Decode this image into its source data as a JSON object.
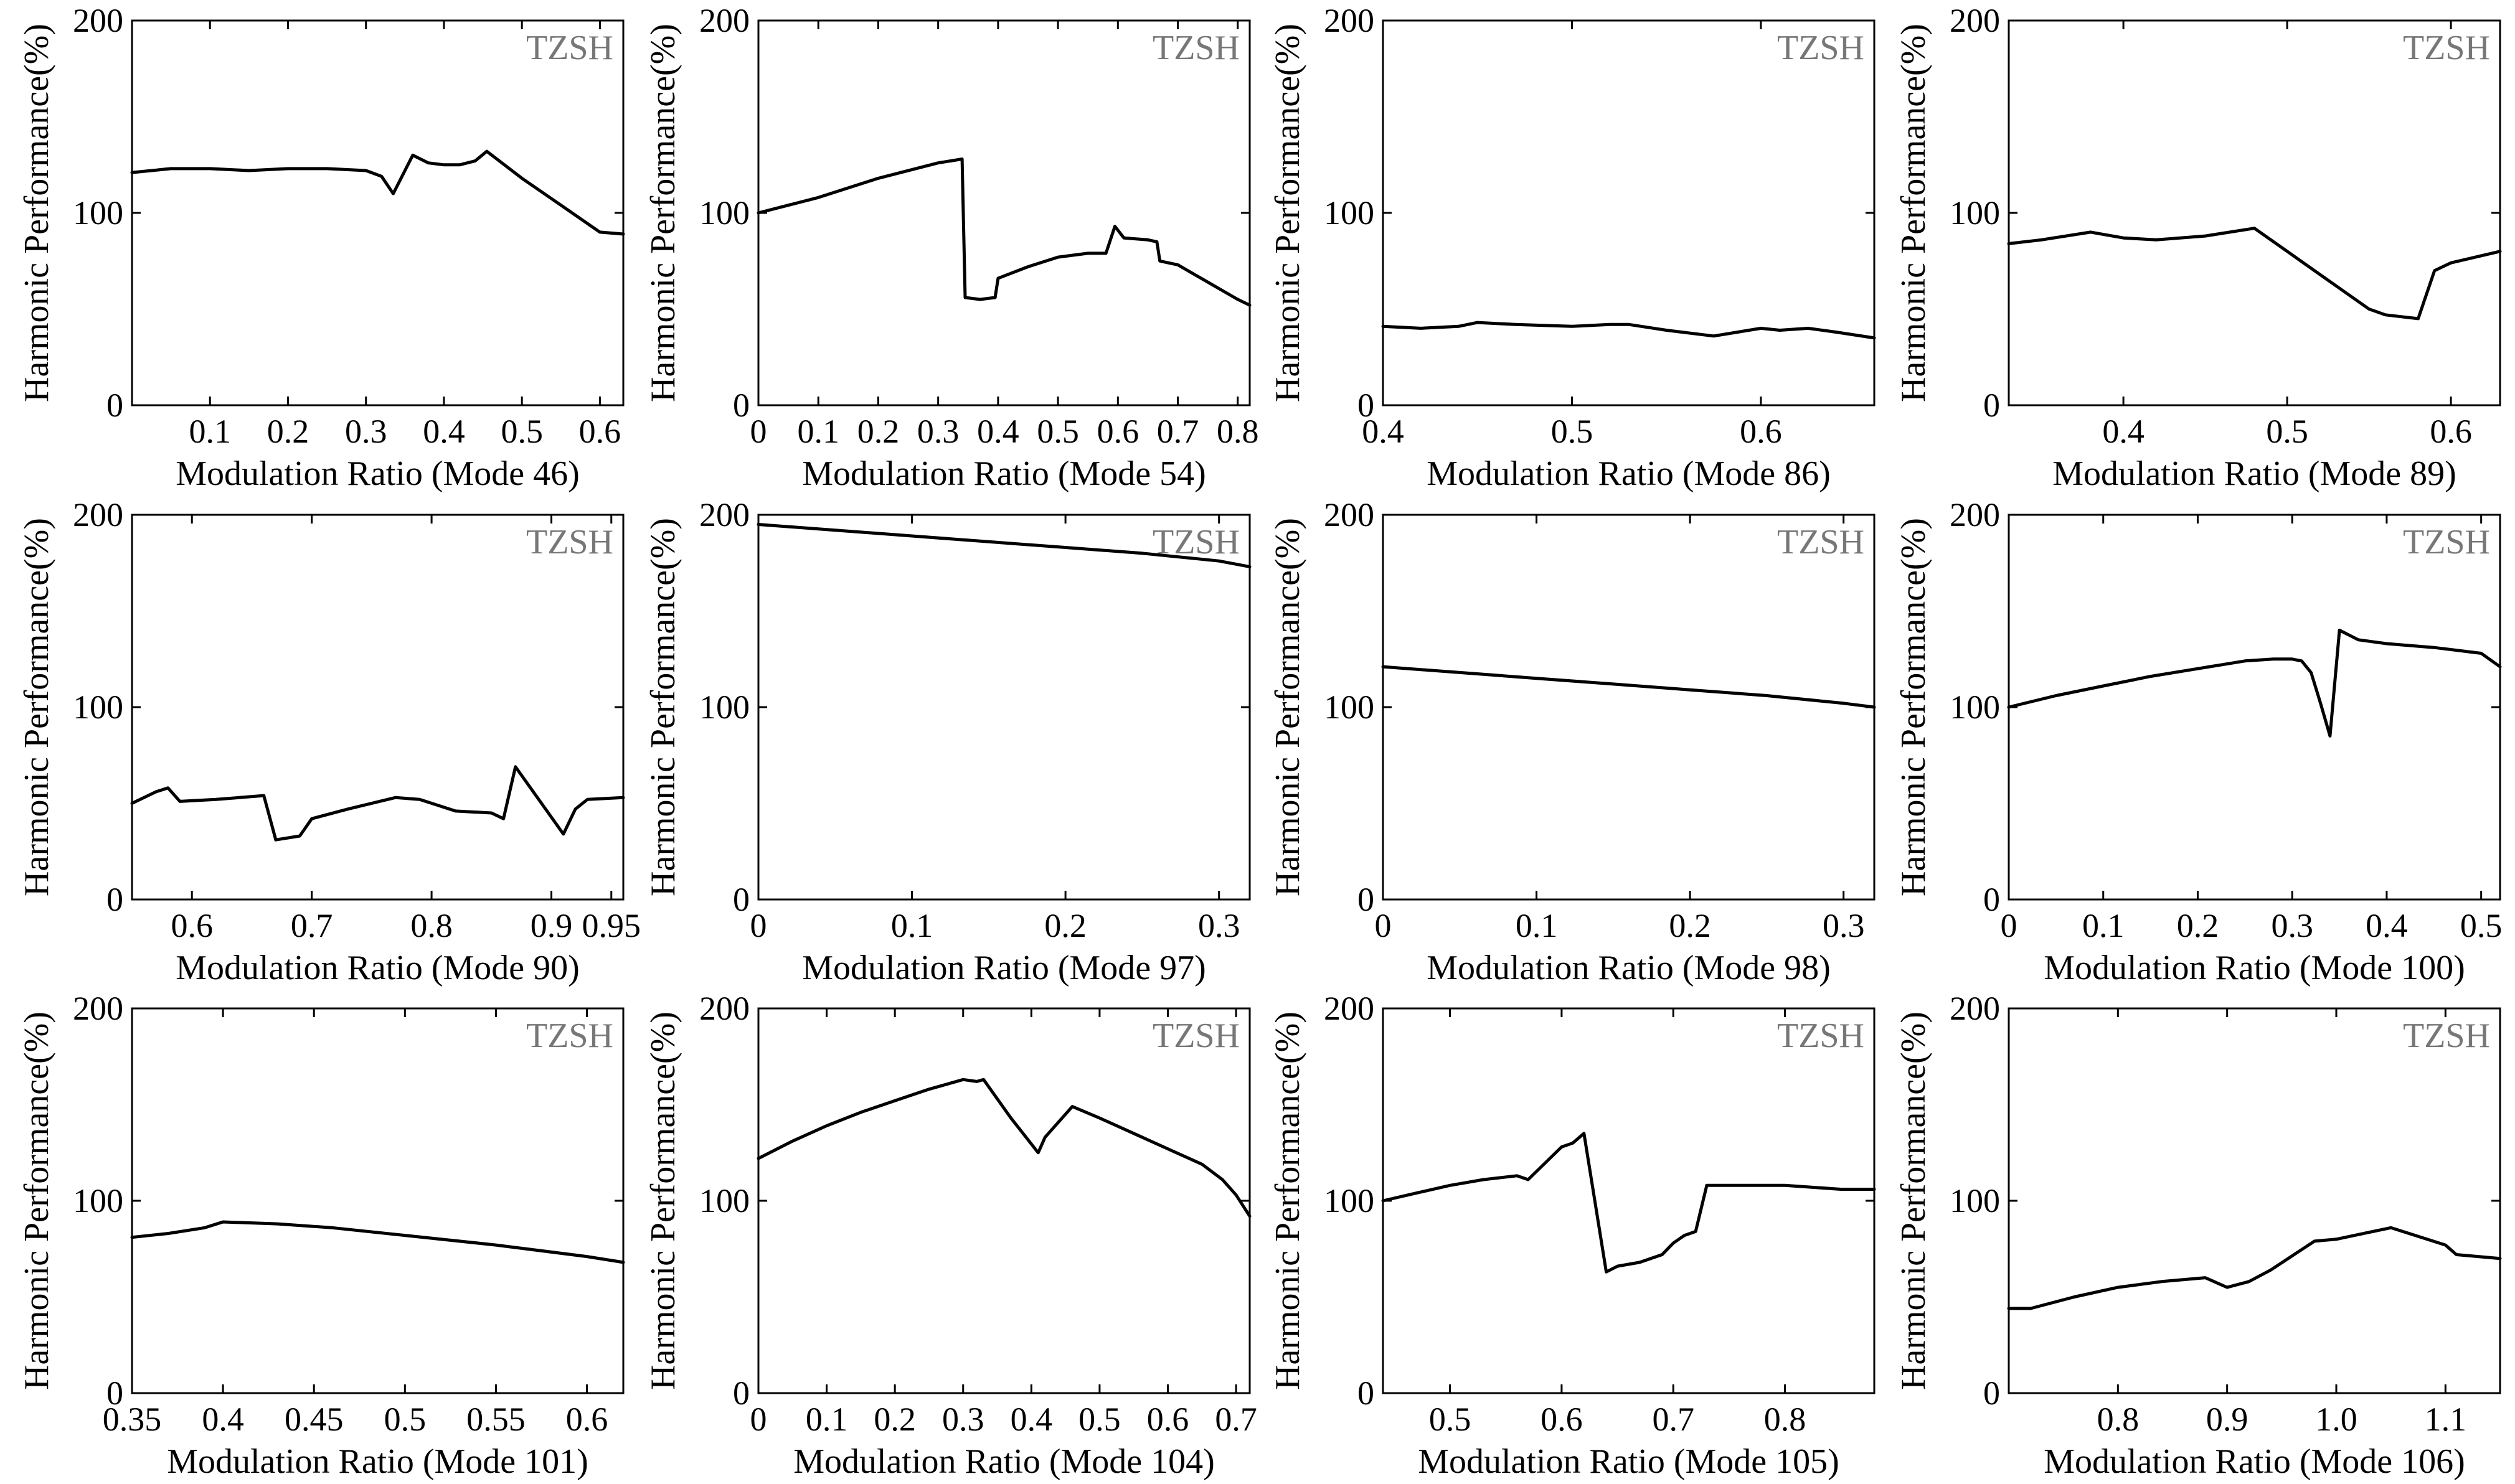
{
  "figure": {
    "ylabel": "Harmonic Performance(%)",
    "watermark": "TZSH",
    "line_color": "#000000",
    "watermark_color": "#777777"
  },
  "chart_data": [
    {
      "type": "line",
      "title": "",
      "xlabel": "Modulation Ratio (Mode 46)",
      "ylabel": "Harmonic Performance(%)",
      "watermark": "TZSH",
      "xlim": [
        0.0,
        0.63
      ],
      "ylim": [
        0,
        200
      ],
      "xticks": [
        0.1,
        0.2,
        0.3,
        0.4,
        0.5,
        0.6
      ],
      "xtick_labels": [
        "0.1",
        "0.2",
        "0.3",
        "0.4",
        "0.5",
        "0.6"
      ],
      "yticks": [
        0,
        100,
        200
      ],
      "ytick_labels": [
        "0",
        "100",
        "200"
      ],
      "x": [
        0.0,
        0.05,
        0.1,
        0.15,
        0.2,
        0.25,
        0.3,
        0.32,
        0.335,
        0.36,
        0.38,
        0.4,
        0.42,
        0.44,
        0.455,
        0.5,
        0.55,
        0.6,
        0.63
      ],
      "y": [
        121,
        123,
        123,
        122,
        123,
        123,
        122,
        119,
        110,
        130,
        126,
        125,
        125,
        127,
        132,
        118,
        104,
        90,
        89
      ]
    },
    {
      "type": "line",
      "title": "",
      "xlabel": "Modulation Ratio (Mode 54)",
      "ylabel": "Harmonic Performance(%)",
      "watermark": "TZSH",
      "xlim": [
        0.0,
        0.82
      ],
      "ylim": [
        0,
        200
      ],
      "xticks": [
        0,
        0.1,
        0.2,
        0.3,
        0.4,
        0.5,
        0.6,
        0.7,
        0.8
      ],
      "xtick_labels": [
        "0",
        "0.1",
        "0.2",
        "0.3",
        "0.4",
        "0.5",
        "0.6",
        "0.7",
        "0.8"
      ],
      "yticks": [
        0,
        100,
        200
      ],
      "ytick_labels": [
        "0",
        "100",
        "200"
      ],
      "x": [
        0.0,
        0.1,
        0.2,
        0.3,
        0.34,
        0.345,
        0.37,
        0.395,
        0.4,
        0.45,
        0.5,
        0.55,
        0.58,
        0.595,
        0.61,
        0.65,
        0.665,
        0.67,
        0.7,
        0.75,
        0.8,
        0.82
      ],
      "y": [
        100,
        108,
        118,
        126,
        128,
        56,
        55,
        56,
        66,
        72,
        77,
        79,
        79,
        93,
        87,
        86,
        85,
        75,
        73,
        64,
        55,
        52
      ]
    },
    {
      "type": "line",
      "title": "",
      "xlabel": "Modulation Ratio (Mode 86)",
      "ylabel": "Harmonic Performance(%)",
      "watermark": "TZSH",
      "xlim": [
        0.4,
        0.66
      ],
      "ylim": [
        0,
        200
      ],
      "xticks": [
        0.4,
        0.5,
        0.6
      ],
      "xtick_labels": [
        "0.4",
        "0.5",
        "0.6"
      ],
      "yticks": [
        0,
        100,
        200
      ],
      "ytick_labels": [
        "0",
        "100",
        "200"
      ],
      "x": [
        0.4,
        0.42,
        0.44,
        0.45,
        0.47,
        0.5,
        0.52,
        0.53,
        0.55,
        0.575,
        0.6,
        0.61,
        0.625,
        0.64,
        0.66
      ],
      "y": [
        41,
        40,
        41,
        43,
        42,
        41,
        42,
        42,
        39,
        36,
        40,
        39,
        40,
        38,
        35
      ]
    },
    {
      "type": "line",
      "title": "",
      "xlabel": "Modulation Ratio (Mode 89)",
      "ylabel": "Harmonic Performance(%)",
      "watermark": "TZSH",
      "xlim": [
        0.33,
        0.63
      ],
      "ylim": [
        0,
        200
      ],
      "xticks": [
        0.4,
        0.5,
        0.6
      ],
      "xtick_labels": [
        "0.4",
        "0.5",
        "0.6"
      ],
      "yticks": [
        0,
        100,
        200
      ],
      "ytick_labels": [
        "0",
        "100",
        "200"
      ],
      "x": [
        0.33,
        0.35,
        0.38,
        0.4,
        0.42,
        0.45,
        0.48,
        0.52,
        0.55,
        0.56,
        0.58,
        0.59,
        0.6,
        0.63
      ],
      "y": [
        84,
        86,
        90,
        87,
        86,
        88,
        92,
        68,
        50,
        47,
        45,
        70,
        74,
        80
      ]
    },
    {
      "type": "line",
      "title": "",
      "xlabel": "Modulation Ratio (Mode 90)",
      "ylabel": "Harmonic Performance(%)",
      "watermark": "TZSH",
      "xlim": [
        0.55,
        0.96
      ],
      "ylim": [
        0,
        200
      ],
      "xticks": [
        0.6,
        0.7,
        0.8,
        0.9,
        0.95
      ],
      "xtick_labels": [
        "0.6",
        "0.7",
        "0.8",
        "0.9",
        "0.95"
      ],
      "yticks": [
        0,
        100,
        200
      ],
      "ytick_labels": [
        "0",
        "100",
        "200"
      ],
      "x": [
        0.55,
        0.57,
        0.58,
        0.59,
        0.62,
        0.66,
        0.67,
        0.69,
        0.7,
        0.73,
        0.77,
        0.79,
        0.82,
        0.85,
        0.86,
        0.87,
        0.91,
        0.92,
        0.93,
        0.96
      ],
      "y": [
        50,
        56,
        58,
        51,
        52,
        54,
        31,
        33,
        42,
        47,
        53,
        52,
        46,
        45,
        42,
        69,
        34,
        47,
        52,
        53
      ]
    },
    {
      "type": "line",
      "title": "",
      "xlabel": "Modulation Ratio (Mode 97)",
      "ylabel": "Harmonic Performance(%)",
      "watermark": "TZSH",
      "xlim": [
        0.0,
        0.32
      ],
      "ylim": [
        0,
        200
      ],
      "xticks": [
        0,
        0.1,
        0.2,
        0.3
      ],
      "xtick_labels": [
        "0",
        "0.1",
        "0.2",
        "0.3"
      ],
      "yticks": [
        0,
        100,
        200
      ],
      "ytick_labels": [
        "0",
        "100",
        "200"
      ],
      "x": [
        0.0,
        0.05,
        0.1,
        0.15,
        0.2,
        0.25,
        0.3,
        0.32
      ],
      "y": [
        195,
        192,
        189,
        186,
        183,
        180,
        176,
        173
      ]
    },
    {
      "type": "line",
      "title": "",
      "xlabel": "Modulation Ratio (Mode 98)",
      "ylabel": "Harmonic Performance(%)",
      "watermark": "TZSH",
      "xlim": [
        0.0,
        0.32
      ],
      "ylim": [
        0,
        200
      ],
      "xticks": [
        0,
        0.1,
        0.2,
        0.3
      ],
      "xtick_labels": [
        "0",
        "0.1",
        "0.2",
        "0.3"
      ],
      "yticks": [
        0,
        100,
        200
      ],
      "ytick_labels": [
        "0",
        "100",
        "200"
      ],
      "x": [
        0.0,
        0.05,
        0.1,
        0.15,
        0.2,
        0.25,
        0.3,
        0.32
      ],
      "y": [
        121,
        118,
        115,
        112,
        109,
        106,
        102,
        100
      ]
    },
    {
      "type": "line",
      "title": "",
      "xlabel": "Modulation Ratio (Mode 100)",
      "ylabel": "Harmonic Performance(%)",
      "watermark": "TZSH",
      "xlim": [
        0.0,
        0.52
      ],
      "ylim": [
        0,
        200
      ],
      "xticks": [
        0,
        0.1,
        0.2,
        0.3,
        0.4,
        0.5
      ],
      "xtick_labels": [
        "0",
        "0.1",
        "0.2",
        "0.3",
        "0.4",
        "0.5"
      ],
      "yticks": [
        0,
        100,
        200
      ],
      "ytick_labels": [
        "0",
        "100",
        "200"
      ],
      "x": [
        0.0,
        0.05,
        0.1,
        0.15,
        0.2,
        0.25,
        0.28,
        0.3,
        0.31,
        0.32,
        0.33,
        0.34,
        0.35,
        0.37,
        0.4,
        0.45,
        0.5,
        0.52
      ],
      "y": [
        100,
        106,
        111,
        116,
        120,
        124,
        125,
        125,
        124,
        118,
        102,
        85,
        140,
        135,
        133,
        131,
        128,
        121
      ]
    },
    {
      "type": "line",
      "title": "",
      "xlabel": "Modulation Ratio (Mode 101)",
      "ylabel": "Harmonic Performance(%)",
      "watermark": "TZSH",
      "xlim": [
        0.35,
        0.62
      ],
      "ylim": [
        0,
        200
      ],
      "xticks": [
        0.35,
        0.4,
        0.45,
        0.5,
        0.55,
        0.6
      ],
      "xtick_labels": [
        "0.35",
        "0.4",
        "0.45",
        "0.5",
        "0.55",
        "0.6"
      ],
      "yticks": [
        0,
        100,
        200
      ],
      "ytick_labels": [
        "0",
        "100",
        "200"
      ],
      "x": [
        0.35,
        0.37,
        0.39,
        0.4,
        0.43,
        0.46,
        0.5,
        0.55,
        0.6,
        0.62
      ],
      "y": [
        81,
        83,
        86,
        89,
        88,
        86,
        82,
        77,
        71,
        68
      ]
    },
    {
      "type": "line",
      "title": "",
      "xlabel": "Modulation Ratio (Mode 104)",
      "ylabel": "Harmonic Performance(%)",
      "watermark": "TZSH",
      "xlim": [
        0.0,
        0.72
      ],
      "ylim": [
        0,
        200
      ],
      "xticks": [
        0,
        0.1,
        0.2,
        0.3,
        0.4,
        0.5,
        0.6,
        0.7
      ],
      "xtick_labels": [
        "0",
        "0.1",
        "0.2",
        "0.3",
        "0.4",
        "0.5",
        "0.6",
        "0.7"
      ],
      "yticks": [
        0,
        100,
        200
      ],
      "ytick_labels": [
        "0",
        "100",
        "200"
      ],
      "x": [
        0.0,
        0.05,
        0.1,
        0.15,
        0.2,
        0.25,
        0.3,
        0.32,
        0.33,
        0.37,
        0.41,
        0.42,
        0.46,
        0.5,
        0.55,
        0.6,
        0.65,
        0.68,
        0.7,
        0.72
      ],
      "y": [
        122,
        131,
        139,
        146,
        152,
        158,
        163,
        162,
        163,
        143,
        125,
        133,
        149,
        143,
        135,
        127,
        119,
        111,
        103,
        92
      ]
    },
    {
      "type": "line",
      "title": "",
      "xlabel": "Modulation Ratio (Mode 105)",
      "ylabel": "Harmonic Performance(%)",
      "watermark": "TZSH",
      "xlim": [
        0.44,
        0.88
      ],
      "ylim": [
        0,
        200
      ],
      "xticks": [
        0.5,
        0.6,
        0.7,
        0.8
      ],
      "xtick_labels": [
        "0.5",
        "0.6",
        "0.7",
        "0.8"
      ],
      "yticks": [
        0,
        100,
        200
      ],
      "ytick_labels": [
        "0",
        "100",
        "200"
      ],
      "x": [
        0.44,
        0.47,
        0.5,
        0.53,
        0.56,
        0.57,
        0.6,
        0.61,
        0.62,
        0.64,
        0.65,
        0.67,
        0.69,
        0.7,
        0.71,
        0.72,
        0.73,
        0.75,
        0.8,
        0.85,
        0.88
      ],
      "y": [
        100,
        104,
        108,
        111,
        113,
        111,
        128,
        130,
        135,
        63,
        66,
        68,
        72,
        78,
        82,
        84,
        108,
        108,
        108,
        106,
        106
      ]
    },
    {
      "type": "line",
      "title": "",
      "xlabel": "Modulation Ratio (Mode 106)",
      "ylabel": "Harmonic Performance(%)",
      "watermark": "TZSH",
      "xlim": [
        0.7,
        1.15
      ],
      "ylim": [
        0,
        200
      ],
      "xticks": [
        0.8,
        0.9,
        1.0,
        1.1
      ],
      "xtick_labels": [
        "0.8",
        "0.9",
        "1.0",
        "1.1"
      ],
      "yticks": [
        0,
        100,
        200
      ],
      "ytick_labels": [
        "0",
        "100",
        "200"
      ],
      "x": [
        0.7,
        0.72,
        0.76,
        0.8,
        0.84,
        0.88,
        0.9,
        0.92,
        0.94,
        0.98,
        1.0,
        1.05,
        1.1,
        1.11,
        1.15
      ],
      "y": [
        44,
        44,
        50,
        55,
        58,
        60,
        55,
        58,
        64,
        79,
        80,
        86,
        77,
        72,
        70
      ]
    }
  ]
}
